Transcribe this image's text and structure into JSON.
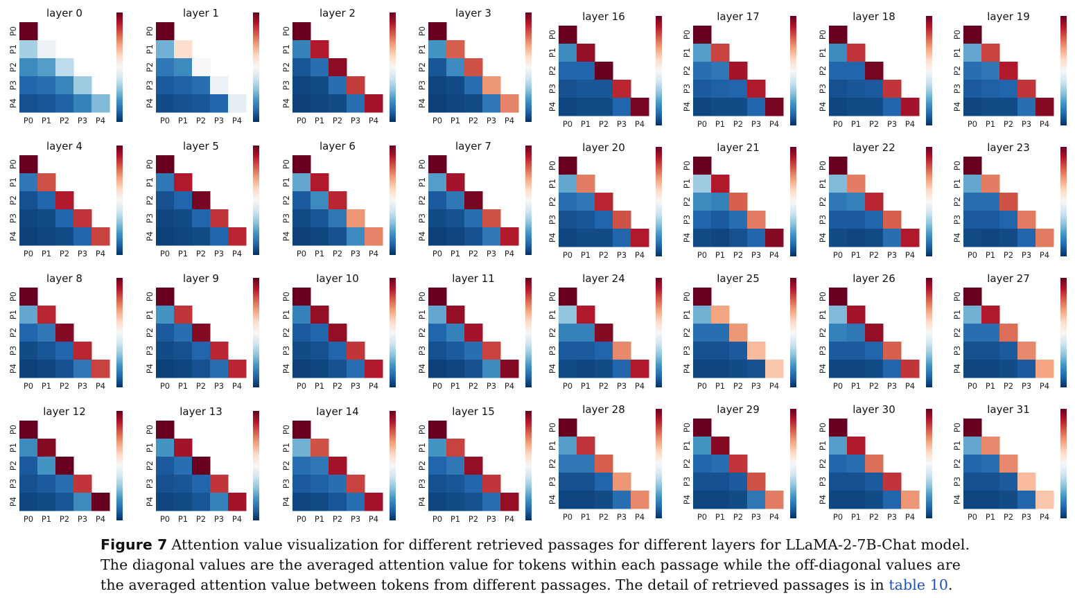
{
  "chart_data": {
    "type": "heatmap",
    "row_labels": [
      "P0",
      "P1",
      "P2",
      "P3",
      "P4"
    ],
    "col_labels": [
      "P0",
      "P1",
      "P2",
      "P3",
      "P4"
    ],
    "value_scale": "relative (colorbar, no tick labels shown)",
    "colormap": "RdBu_r",
    "note_values": "lower-triangular; values estimated from color on a 0-1 relative scale",
    "panels": [
      {
        "title": "layer 0",
        "values": [
          [
            1.0
          ],
          [
            0.33,
            0.47
          ],
          [
            0.18,
            0.22,
            0.37
          ],
          [
            0.1,
            0.12,
            0.17,
            0.32
          ],
          [
            0.06,
            0.07,
            0.09,
            0.16,
            0.28
          ]
        ]
      },
      {
        "title": "layer 1",
        "values": [
          [
            1.0
          ],
          [
            0.26,
            0.58
          ],
          [
            0.14,
            0.18,
            0.5
          ],
          [
            0.08,
            0.09,
            0.12,
            0.47
          ],
          [
            0.05,
            0.06,
            0.07,
            0.1,
            0.45
          ]
        ]
      },
      {
        "title": "layer 2",
        "values": [
          [
            1.0
          ],
          [
            0.16,
            0.9
          ],
          [
            0.07,
            0.12,
            0.95
          ],
          [
            0.04,
            0.05,
            0.12,
            0.85
          ],
          [
            0.03,
            0.04,
            0.05,
            0.12,
            0.92
          ]
        ]
      },
      {
        "title": "layer 3",
        "values": [
          [
            1.0
          ],
          [
            0.2,
            0.8
          ],
          [
            0.07,
            0.18,
            0.82
          ],
          [
            0.04,
            0.05,
            0.12,
            0.72
          ],
          [
            0.03,
            0.04,
            0.05,
            0.14,
            0.75
          ]
        ]
      },
      {
        "title": "layer 4",
        "values": [
          [
            1.0
          ],
          [
            0.14,
            0.82
          ],
          [
            0.06,
            0.1,
            0.9
          ],
          [
            0.04,
            0.05,
            0.1,
            0.86
          ],
          [
            0.03,
            0.04,
            0.05,
            0.1,
            0.84
          ]
        ]
      },
      {
        "title": "layer 5",
        "values": [
          [
            1.0
          ],
          [
            0.14,
            0.9
          ],
          [
            0.06,
            0.1,
            0.98
          ],
          [
            0.04,
            0.05,
            0.1,
            0.86
          ],
          [
            0.03,
            0.04,
            0.05,
            0.1,
            0.88
          ]
        ]
      },
      {
        "title": "layer 6",
        "values": [
          [
            1.0
          ],
          [
            0.24,
            0.9
          ],
          [
            0.08,
            0.18,
            0.88
          ],
          [
            0.05,
            0.07,
            0.14,
            0.72
          ],
          [
            0.03,
            0.04,
            0.06,
            0.18,
            0.75
          ]
        ]
      },
      {
        "title": "layer 7",
        "values": [
          [
            1.0
          ],
          [
            0.22,
            0.92
          ],
          [
            0.08,
            0.14,
            0.98
          ],
          [
            0.05,
            0.06,
            0.12,
            0.82
          ],
          [
            0.03,
            0.04,
            0.06,
            0.14,
            0.9
          ]
        ]
      },
      {
        "title": "layer 8",
        "values": [
          [
            1.0
          ],
          [
            0.24,
            0.88
          ],
          [
            0.1,
            0.14,
            0.96
          ],
          [
            0.05,
            0.07,
            0.1,
            0.88
          ],
          [
            0.03,
            0.04,
            0.06,
            0.14,
            0.84
          ]
        ]
      },
      {
        "title": "layer 9",
        "values": [
          [
            1.0
          ],
          [
            0.2,
            0.86
          ],
          [
            0.08,
            0.12,
            0.96
          ],
          [
            0.05,
            0.06,
            0.1,
            0.88
          ],
          [
            0.03,
            0.04,
            0.06,
            0.12,
            0.88
          ]
        ]
      },
      {
        "title": "layer 10",
        "values": [
          [
            1.0
          ],
          [
            0.16,
            0.94
          ],
          [
            0.08,
            0.1,
            0.94
          ],
          [
            0.05,
            0.06,
            0.1,
            0.86
          ],
          [
            0.03,
            0.04,
            0.06,
            0.12,
            0.9
          ]
        ]
      },
      {
        "title": "layer 11",
        "values": [
          [
            1.0
          ],
          [
            0.24,
            0.94
          ],
          [
            0.1,
            0.16,
            0.92
          ],
          [
            0.06,
            0.08,
            0.12,
            0.84
          ],
          [
            0.03,
            0.04,
            0.06,
            0.18,
            0.96
          ]
        ]
      },
      {
        "title": "layer 12",
        "values": [
          [
            1.0
          ],
          [
            0.18,
            0.96
          ],
          [
            0.08,
            0.2,
            1.0
          ],
          [
            0.06,
            0.08,
            0.12,
            0.86
          ],
          [
            0.04,
            0.05,
            0.07,
            0.18,
            1.0
          ]
        ]
      },
      {
        "title": "layer 13",
        "values": [
          [
            1.0
          ],
          [
            0.2,
            0.92
          ],
          [
            0.08,
            0.12,
            1.0
          ],
          [
            0.06,
            0.07,
            0.1,
            0.86
          ],
          [
            0.04,
            0.05,
            0.07,
            0.16,
            0.92
          ]
        ]
      },
      {
        "title": "layer 14",
        "values": [
          [
            1.0
          ],
          [
            0.26,
            0.82
          ],
          [
            0.12,
            0.14,
            0.92
          ],
          [
            0.08,
            0.09,
            0.12,
            0.84
          ],
          [
            0.04,
            0.05,
            0.07,
            0.12,
            0.92
          ]
        ]
      },
      {
        "title": "layer 15",
        "values": [
          [
            1.0
          ],
          [
            0.2,
            0.84
          ],
          [
            0.1,
            0.14,
            0.94
          ],
          [
            0.06,
            0.07,
            0.1,
            0.86
          ],
          [
            0.04,
            0.05,
            0.06,
            0.12,
            0.94
          ]
        ]
      },
      {
        "title": "layer 16",
        "values": [
          [
            1.0
          ],
          [
            0.18,
            0.94
          ],
          [
            0.1,
            0.1,
            1.0
          ],
          [
            0.06,
            0.07,
            0.07,
            0.88
          ],
          [
            0.04,
            0.05,
            0.05,
            0.1,
            0.98
          ]
        ]
      },
      {
        "title": "layer 17",
        "values": [
          [
            1.0
          ],
          [
            0.22,
            0.84
          ],
          [
            0.12,
            0.14,
            0.92
          ],
          [
            0.08,
            0.09,
            0.1,
            0.9
          ],
          [
            0.04,
            0.05,
            0.05,
            0.1,
            0.98
          ]
        ]
      },
      {
        "title": "layer 18",
        "values": [
          [
            1.0
          ],
          [
            0.18,
            0.86
          ],
          [
            0.1,
            0.1,
            0.98
          ],
          [
            0.06,
            0.07,
            0.08,
            0.86
          ],
          [
            0.04,
            0.05,
            0.05,
            0.1,
            0.92
          ]
        ]
      },
      {
        "title": "layer 19",
        "values": [
          [
            1.0
          ],
          [
            0.24,
            0.84
          ],
          [
            0.12,
            0.14,
            0.9
          ],
          [
            0.08,
            0.09,
            0.1,
            0.86
          ],
          [
            0.04,
            0.05,
            0.05,
            0.12,
            0.96
          ]
        ]
      },
      {
        "title": "layer 20",
        "values": [
          [
            1.0
          ],
          [
            0.24,
            0.76
          ],
          [
            0.12,
            0.14,
            0.88
          ],
          [
            0.06,
            0.07,
            0.1,
            0.82
          ],
          [
            0.04,
            0.05,
            0.05,
            0.1,
            0.9
          ]
        ]
      },
      {
        "title": "layer 21",
        "values": [
          [
            1.0
          ],
          [
            0.32,
            0.9
          ],
          [
            0.18,
            0.16,
            0.8
          ],
          [
            0.1,
            0.08,
            0.12,
            0.76
          ],
          [
            0.05,
            0.04,
            0.06,
            0.1,
            0.96
          ]
        ]
      },
      {
        "title": "layer 22",
        "values": [
          [
            1.0
          ],
          [
            0.28,
            0.76
          ],
          [
            0.14,
            0.16,
            0.88
          ],
          [
            0.08,
            0.08,
            0.1,
            0.8
          ],
          [
            0.05,
            0.04,
            0.05,
            0.12,
            0.9
          ]
        ]
      },
      {
        "title": "layer 23",
        "values": [
          [
            1.0
          ],
          [
            0.24,
            0.76
          ],
          [
            0.12,
            0.12,
            0.82
          ],
          [
            0.08,
            0.08,
            0.1,
            0.76
          ],
          [
            0.05,
            0.04,
            0.05,
            0.1,
            0.76
          ]
        ]
      },
      {
        "title": "layer 24",
        "values": [
          [
            1.0
          ],
          [
            0.3,
            0.9
          ],
          [
            0.16,
            0.16,
            0.96
          ],
          [
            0.08,
            0.08,
            0.1,
            0.74
          ],
          [
            0.05,
            0.04,
            0.05,
            0.1,
            0.9
          ]
        ]
      },
      {
        "title": "layer 25",
        "values": [
          [
            1.0
          ],
          [
            0.26,
            0.7
          ],
          [
            0.12,
            0.12,
            0.72
          ],
          [
            0.06,
            0.06,
            0.08,
            0.66
          ],
          [
            0.04,
            0.04,
            0.05,
            0.06,
            0.64
          ]
        ]
      },
      {
        "title": "layer 26",
        "values": [
          [
            1.0
          ],
          [
            0.28,
            0.92
          ],
          [
            0.16,
            0.14,
            0.94
          ],
          [
            0.08,
            0.08,
            0.1,
            0.8
          ],
          [
            0.04,
            0.04,
            0.05,
            0.1,
            0.86
          ]
        ]
      },
      {
        "title": "layer 27",
        "values": [
          [
            1.0
          ],
          [
            0.26,
            0.9
          ],
          [
            0.12,
            0.12,
            0.78
          ],
          [
            0.06,
            0.06,
            0.08,
            0.74
          ],
          [
            0.04,
            0.04,
            0.05,
            0.08,
            0.7
          ]
        ]
      },
      {
        "title": "layer 28",
        "values": [
          [
            1.0
          ],
          [
            0.22,
            0.86
          ],
          [
            0.14,
            0.14,
            0.8
          ],
          [
            0.06,
            0.06,
            0.1,
            0.72
          ],
          [
            0.04,
            0.04,
            0.05,
            0.12,
            0.74
          ]
        ]
      },
      {
        "title": "layer 29",
        "values": [
          [
            1.0
          ],
          [
            0.2,
            0.96
          ],
          [
            0.1,
            0.12,
            0.86
          ],
          [
            0.06,
            0.06,
            0.08,
            0.82
          ],
          [
            0.04,
            0.04,
            0.05,
            0.14,
            0.76
          ]
        ]
      },
      {
        "title": "layer 30",
        "values": [
          [
            1.0
          ],
          [
            0.22,
            0.9
          ],
          [
            0.1,
            0.12,
            0.78
          ],
          [
            0.06,
            0.06,
            0.08,
            0.86
          ],
          [
            0.04,
            0.04,
            0.05,
            0.1,
            0.72
          ]
        ]
      },
      {
        "title": "layer 31",
        "values": [
          [
            1.0
          ],
          [
            0.24,
            0.74
          ],
          [
            0.1,
            0.12,
            0.74
          ],
          [
            0.06,
            0.06,
            0.08,
            0.66
          ],
          [
            0.04,
            0.04,
            0.05,
            0.1,
            0.64
          ]
        ]
      }
    ]
  },
  "caption": {
    "label": "Figure 7",
    "line1": "Attention value visualization for different retrieved passages for different layers for LLaMA-2-7B-Chat model.",
    "line2": "The diagonal values are the averaged attention value for tokens within each passage while the off-diagonal values are",
    "line3_pre": "the averaged attention value between tokens from different passages. The detail of retrieved passages is in ",
    "line3_link": "table 10",
    "line3_post": "."
  }
}
